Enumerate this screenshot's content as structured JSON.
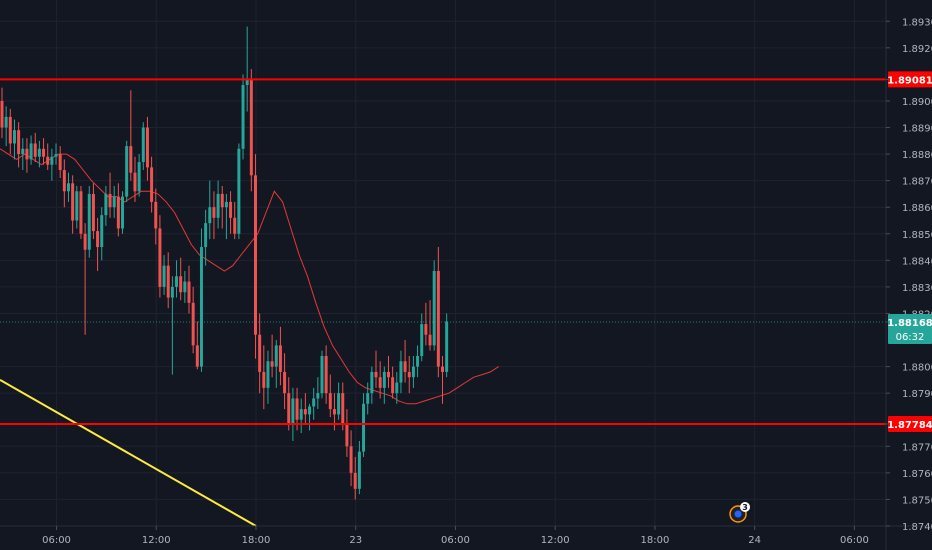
{
  "chart_data": {
    "type": "candlestick",
    "symbol": "",
    "price_ticks": [
      "1.89300",
      "1.89200",
      "1.89081",
      "1.89000",
      "1.88900",
      "1.88800",
      "1.88700",
      "1.88600",
      "1.88500",
      "1.88400",
      "1.88300",
      "1.88200",
      "1.88168",
      "1.88000",
      "1.87900",
      "1.87784",
      "1.87700",
      "1.87600",
      "1.87500",
      "1.87400"
    ],
    "time_ticks": [
      {
        "label": "06:00",
        "hours": 6
      },
      {
        "label": "12:00",
        "hours": 12
      },
      {
        "label": "18:00",
        "hours": 18
      },
      {
        "label": "23",
        "hours": 24
      },
      {
        "label": "06:00",
        "hours": 30
      },
      {
        "label": "12:00",
        "hours": 36
      },
      {
        "label": "18:00",
        "hours": 42
      },
      {
        "label": "24",
        "hours": 48
      },
      {
        "label": "06:00",
        "hours": 54
      }
    ],
    "ylim": [
      1.874,
      1.8938
    ],
    "xlim_hours": [
      2.6,
      55.9
    ],
    "grid": true,
    "candle_interval_hours": 0.25,
    "candles_ohlc": [
      [
        1.89,
        1.8905,
        1.8886,
        1.889
      ],
      [
        1.889,
        1.8898,
        1.8883,
        1.8894
      ],
      [
        1.8894,
        1.8897,
        1.888,
        1.8884
      ],
      [
        1.8884,
        1.8893,
        1.8878,
        1.8889
      ],
      [
        1.8889,
        1.8892,
        1.8875,
        1.888
      ],
      [
        1.888,
        1.8886,
        1.8874,
        1.8882
      ],
      [
        1.8882,
        1.8886,
        1.8873,
        1.8878
      ],
      [
        1.8878,
        1.8887,
        1.8876,
        1.8884
      ],
      [
        1.8884,
        1.8888,
        1.8877,
        1.8879
      ],
      [
        1.8879,
        1.8885,
        1.8875,
        1.8882
      ],
      [
        1.8882,
        1.8886,
        1.8876,
        1.8879
      ],
      [
        1.8879,
        1.8884,
        1.8874,
        1.8876
      ],
      [
        1.8876,
        1.8882,
        1.887,
        1.8879
      ],
      [
        1.8879,
        1.8884,
        1.8876,
        1.888
      ],
      [
        1.888,
        1.8883,
        1.8871,
        1.8874
      ],
      [
        1.8874,
        1.8878,
        1.886,
        1.8866
      ],
      [
        1.8866,
        1.8873,
        1.8862,
        1.8869
      ],
      [
        1.8869,
        1.8872,
        1.885,
        1.8855
      ],
      [
        1.8855,
        1.8868,
        1.8852,
        1.8866
      ],
      [
        1.8866,
        1.8868,
        1.8848,
        1.885
      ],
      [
        1.885,
        1.8854,
        1.8812,
        1.8844
      ],
      [
        1.8844,
        1.8868,
        1.8841,
        1.8865
      ],
      [
        1.8865,
        1.8869,
        1.8848,
        1.8851
      ],
      [
        1.8851,
        1.8856,
        1.8836,
        1.8845
      ],
      [
        1.8845,
        1.886,
        1.884,
        1.8857
      ],
      [
        1.8857,
        1.8868,
        1.8853,
        1.8865
      ],
      [
        1.8865,
        1.8873,
        1.8856,
        1.886
      ],
      [
        1.886,
        1.8868,
        1.8856,
        1.8864
      ],
      [
        1.8864,
        1.8869,
        1.8849,
        1.8852
      ],
      [
        1.8852,
        1.8866,
        1.885,
        1.8864
      ],
      [
        1.8864,
        1.8885,
        1.8862,
        1.8883
      ],
      [
        1.8883,
        1.8904,
        1.887,
        1.8873
      ],
      [
        1.8873,
        1.8879,
        1.8862,
        1.8866
      ],
      [
        1.8866,
        1.888,
        1.8864,
        1.8877
      ],
      [
        1.8877,
        1.8892,
        1.8874,
        1.889
      ],
      [
        1.889,
        1.8894,
        1.887,
        1.8875
      ],
      [
        1.8875,
        1.8879,
        1.8858,
        1.8862
      ],
      [
        1.8862,
        1.8867,
        1.8846,
        1.8852
      ],
      [
        1.8852,
        1.8857,
        1.8826,
        1.883
      ],
      [
        1.883,
        1.8842,
        1.8827,
        1.8838
      ],
      [
        1.8838,
        1.8843,
        1.8822,
        1.8826
      ],
      [
        1.8826,
        1.8834,
        1.8797,
        1.883
      ],
      [
        1.883,
        1.884,
        1.8826,
        1.8834
      ],
      [
        1.8834,
        1.8841,
        1.8825,
        1.8828
      ],
      [
        1.8828,
        1.8836,
        1.8824,
        1.8832
      ],
      [
        1.8832,
        1.8838,
        1.882,
        1.8824
      ],
      [
        1.8824,
        1.883,
        1.8805,
        1.8808
      ],
      [
        1.8808,
        1.8817,
        1.8799,
        1.88
      ],
      [
        1.88,
        1.8852,
        1.8798,
        1.8845
      ],
      [
        1.8845,
        1.8859,
        1.8838,
        1.8854
      ],
      [
        1.8854,
        1.887,
        1.8848,
        1.886
      ],
      [
        1.886,
        1.8866,
        1.8848,
        1.8856
      ],
      [
        1.8856,
        1.887,
        1.8852,
        1.8865
      ],
      [
        1.8865,
        1.8868,
        1.8852,
        1.886
      ],
      [
        1.886,
        1.8865,
        1.8848,
        1.8862
      ],
      [
        1.8862,
        1.8866,
        1.885,
        1.8856
      ],
      [
        1.8856,
        1.8862,
        1.8848,
        1.885
      ],
      [
        1.885,
        1.8884,
        1.8848,
        1.8882
      ],
      [
        1.8882,
        1.891,
        1.8878,
        1.8906
      ],
      [
        1.8906,
        1.8928,
        1.8896,
        1.8908
      ],
      [
        1.8908,
        1.8912,
        1.8866,
        1.8872
      ],
      [
        1.8872,
        1.888,
        1.8803,
        1.8812
      ],
      [
        1.8812,
        1.882,
        1.879,
        1.8798
      ],
      [
        1.8798,
        1.8808,
        1.8784,
        1.8792
      ],
      [
        1.8792,
        1.8806,
        1.8786,
        1.8802
      ],
      [
        1.8802,
        1.8812,
        1.8796,
        1.88
      ],
      [
        1.88,
        1.881,
        1.8792,
        1.8808
      ],
      [
        1.8808,
        1.8815,
        1.8793,
        1.8798
      ],
      [
        1.8798,
        1.8805,
        1.8784,
        1.879
      ],
      [
        1.879,
        1.8796,
        1.8776,
        1.8778
      ],
      [
        1.8778,
        1.8792,
        1.8772,
        1.8788
      ],
      [
        1.8788,
        1.8792,
        1.8776,
        1.878
      ],
      [
        1.878,
        1.8788,
        1.8775,
        1.8784
      ],
      [
        1.8784,
        1.879,
        1.8778,
        1.8782
      ],
      [
        1.8782,
        1.8786,
        1.8776,
        1.8785
      ],
      [
        1.8785,
        1.8792,
        1.878,
        1.8788
      ],
      [
        1.8788,
        1.8796,
        1.8784,
        1.879
      ],
      [
        1.879,
        1.8806,
        1.8788,
        1.8804
      ],
      [
        1.8804,
        1.8808,
        1.8786,
        1.879
      ],
      [
        1.879,
        1.8797,
        1.8781,
        1.8784
      ],
      [
        1.8784,
        1.879,
        1.8776,
        1.8782
      ],
      [
        1.8782,
        1.8794,
        1.878,
        1.879
      ],
      [
        1.879,
        1.8794,
        1.8776,
        1.8778
      ],
      [
        1.8778,
        1.8784,
        1.8766,
        1.877
      ],
      [
        1.877,
        1.8776,
        1.8755,
        1.876
      ],
      [
        1.876,
        1.8766,
        1.875,
        1.8754
      ],
      [
        1.8754,
        1.8772,
        1.8752,
        1.8768
      ],
      [
        1.8768,
        1.879,
        1.8766,
        1.8786
      ],
      [
        1.8786,
        1.8794,
        1.8782,
        1.879
      ],
      [
        1.879,
        1.88,
        1.8786,
        1.8798
      ],
      [
        1.8798,
        1.8806,
        1.8792,
        1.8796
      ],
      [
        1.8796,
        1.8802,
        1.8788,
        1.8792
      ],
      [
        1.8792,
        1.88,
        1.8786,
        1.8798
      ],
      [
        1.8798,
        1.8804,
        1.8792,
        1.8796
      ],
      [
        1.8796,
        1.88,
        1.8788,
        1.879
      ],
      [
        1.879,
        1.8798,
        1.8786,
        1.8794
      ],
      [
        1.8794,
        1.8806,
        1.879,
        1.8802
      ],
      [
        1.8802,
        1.881,
        1.8794,
        1.8798
      ],
      [
        1.8798,
        1.8804,
        1.879,
        1.8796
      ],
      [
        1.8796,
        1.8804,
        1.8792,
        1.88
      ],
      [
        1.88,
        1.8808,
        1.8796,
        1.8804
      ],
      [
        1.8804,
        1.882,
        1.8802,
        1.8816
      ],
      [
        1.8816,
        1.8824,
        1.8808,
        1.8812
      ],
      [
        1.8812,
        1.8825,
        1.8806,
        1.8808
      ],
      [
        1.8808,
        1.884,
        1.8806,
        1.8836
      ],
      [
        1.8836,
        1.8845,
        1.8796,
        1.88
      ],
      [
        1.88,
        1.8804,
        1.8786,
        1.8798
      ],
      [
        1.8798,
        1.882,
        1.8796,
        1.8817
      ]
    ],
    "moving_average": {
      "color": "#e53935",
      "start_hours": 2.6,
      "step_hours": 0.5,
      "values": [
        1.8882,
        1.888,
        1.8878,
        1.888,
        1.8878,
        1.8876,
        1.8878,
        1.888,
        1.888,
        1.8878,
        1.8874,
        1.887,
        1.8867,
        1.8864,
        1.8864,
        1.8862,
        1.8864,
        1.8866,
        1.8866,
        1.8865,
        1.8862,
        1.8858,
        1.8852,
        1.8846,
        1.8842,
        1.884,
        1.8838,
        1.8836,
        1.8838,
        1.8842,
        1.8846,
        1.885,
        1.8858,
        1.8866,
        1.8862,
        1.8852,
        1.8842,
        1.8834,
        1.8824,
        1.8815,
        1.8808,
        1.8803,
        1.8798,
        1.8794,
        1.8792,
        1.8791,
        1.879,
        1.8789,
        1.8787,
        1.8786,
        1.8786,
        1.8787,
        1.8788,
        1.8789,
        1.879,
        1.8792,
        1.8794,
        1.8796,
        1.8797,
        1.8798,
        1.88
      ]
    },
    "horizontal_levels": [
      {
        "price": 1.89081,
        "label": "1.89081",
        "color": "#ff0000"
      },
      {
        "price": 1.87784,
        "label": "1.87784",
        "color": "#ff0000"
      }
    ],
    "current_price": {
      "price": 1.88168,
      "label": "1.88168",
      "countdown": "06:32",
      "color": "#26a69a"
    },
    "trendline": {
      "color": "#ffeb3b",
      "from": {
        "hours": 2.6,
        "price": 1.8795
      },
      "to": {
        "hours": 18.0,
        "price": 1.874
      }
    },
    "event_marker": {
      "count": "3",
      "hours": 47.0
    }
  }
}
